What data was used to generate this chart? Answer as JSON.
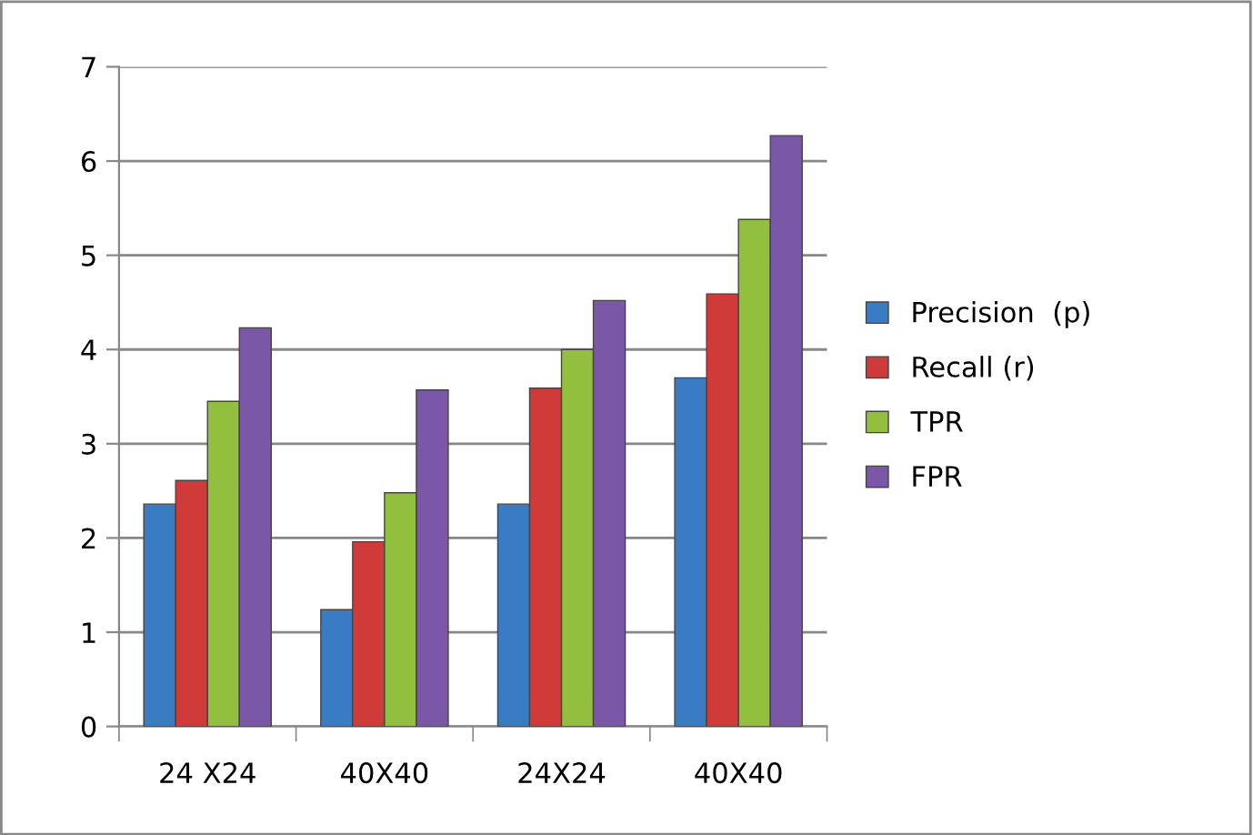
{
  "chart_data": {
    "type": "bar",
    "categories": [
      "24 X24",
      "40X40",
      "24X24",
      "40X40"
    ],
    "series": [
      {
        "name": "Precision  (p)",
        "color": "#3a7cc4",
        "values": [
          2.36,
          1.24,
          2.36,
          3.7
        ]
      },
      {
        "name": "Recall (r)",
        "color": "#d03b3a",
        "values": [
          2.61,
          1.96,
          3.59,
          4.59
        ]
      },
      {
        "name": "TPR",
        "color": "#93bf3e",
        "values": [
          3.45,
          2.48,
          4.0,
          5.38
        ]
      },
      {
        "name": "FPR",
        "color": "#7b57a8",
        "values": [
          4.23,
          3.57,
          4.52,
          6.27
        ]
      }
    ],
    "ylim": [
      0,
      7
    ],
    "yticks": [
      0,
      1,
      2,
      3,
      4,
      5,
      6,
      7
    ],
    "grid": "y",
    "legend": "right"
  }
}
